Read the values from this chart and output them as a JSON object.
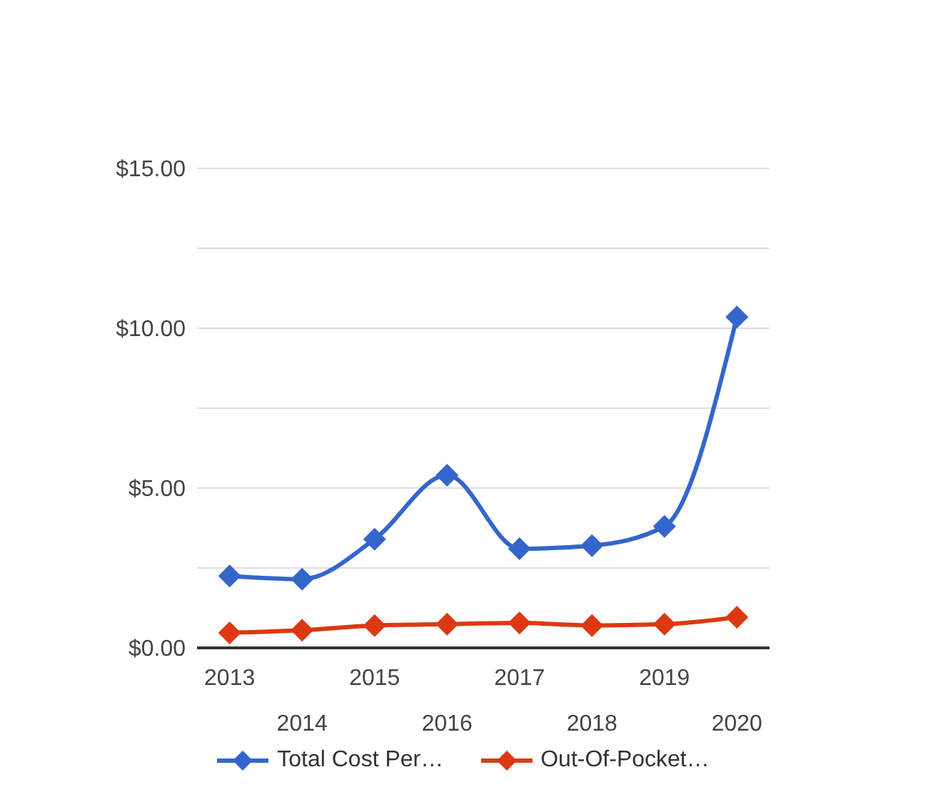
{
  "chart_data": {
    "type": "line",
    "categories": [
      "2013",
      "2014",
      "2015",
      "2016",
      "2017",
      "2018",
      "2019",
      "2020"
    ],
    "series": [
      {
        "name": "Total Cost Per…",
        "color": "#3366cc",
        "values": [
          2.25,
          2.15,
          3.4,
          5.4,
          3.1,
          3.2,
          3.8,
          10.35
        ]
      },
      {
        "name": "Out-Of-Pocket…",
        "color": "#dc3912",
        "values": [
          0.47,
          0.55,
          0.7,
          0.74,
          0.78,
          0.7,
          0.74,
          0.96
        ]
      }
    ],
    "ylim": [
      0,
      15
    ],
    "yticks": [
      {
        "value": 0,
        "label": "$0.00"
      },
      {
        "value": 2.5,
        "label": null
      },
      {
        "value": 5,
        "label": "$5.00"
      },
      {
        "value": 7.5,
        "label": null
      },
      {
        "value": 10,
        "label": "$10.00"
      },
      {
        "value": 12.5,
        "label": null
      },
      {
        "value": 15,
        "label": "$15.00"
      }
    ],
    "grid": "y",
    "legend": "bottom",
    "marker": "diamond",
    "line_style": "solid"
  }
}
